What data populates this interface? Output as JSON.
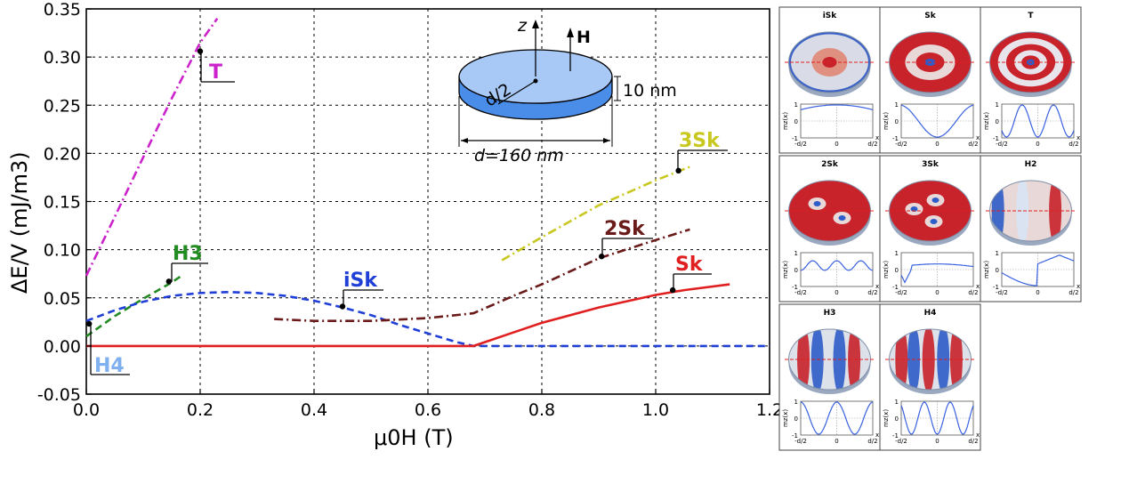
{
  "chart_data": {
    "type": "line",
    "xlabel": "μ0H (T)",
    "ylabel": "ΔE/V (mJ/m3)",
    "xlim": [
      0.0,
      1.2
    ],
    "ylim": [
      -0.05,
      0.35
    ],
    "x_ticks": [
      "0.0",
      "0.2",
      "0.4",
      "0.6",
      "0.8",
      "1.0",
      "1.2"
    ],
    "y_ticks": [
      "-0.05",
      "0.00",
      "0.05",
      "0.10",
      "0.15",
      "0.20",
      "0.25",
      "0.30",
      "0.35"
    ],
    "grid": true,
    "series": [
      {
        "name": "T",
        "color": "#cc22cc",
        "dash": "dashdot",
        "x": [
          0.0,
          0.05,
          0.1,
          0.15,
          0.2,
          0.23
        ],
        "y": [
          0.073,
          0.134,
          0.196,
          0.257,
          0.315,
          0.34
        ]
      },
      {
        "name": "H3",
        "color": "#228b22",
        "dash": "dashed",
        "x": [
          0.0,
          0.05,
          0.1,
          0.15,
          0.17
        ],
        "y": [
          0.01,
          0.031,
          0.049,
          0.066,
          0.074
        ]
      },
      {
        "name": "iSk",
        "color": "#1f3fd6",
        "dash": "dashed",
        "x": [
          0.0,
          0.05,
          0.1,
          0.15,
          0.2,
          0.25,
          0.3,
          0.35,
          0.4,
          0.45,
          0.5,
          0.55,
          0.6,
          0.65,
          0.68,
          0.75,
          0.85,
          0.95,
          1.05,
          1.15,
          1.2
        ],
        "y": [
          0.026,
          0.037,
          0.046,
          0.052,
          0.055,
          0.056,
          0.055,
          0.052,
          0.047,
          0.04,
          0.032,
          0.022,
          0.013,
          0.004,
          0.0,
          0.0,
          0.0,
          0.0,
          0.0,
          0.0,
          0.0
        ]
      },
      {
        "name": "Sk",
        "color": "#e02020",
        "dash": "solid",
        "x": [
          0.0,
          0.2,
          0.4,
          0.6,
          0.68,
          0.75,
          0.8,
          0.9,
          1.0,
          1.05,
          1.13
        ],
        "y": [
          0.0,
          0.0,
          0.0,
          0.0,
          0.0,
          0.014,
          0.024,
          0.04,
          0.053,
          0.058,
          0.064
        ]
      },
      {
        "name": "2Sk",
        "color": "#6b1a1a",
        "dash": "dashdot",
        "x": [
          0.33,
          0.4,
          0.5,
          0.6,
          0.68,
          0.75,
          0.8,
          0.9,
          1.0,
          1.06
        ],
        "y": [
          0.028,
          0.026,
          0.026,
          0.029,
          0.034,
          0.052,
          0.064,
          0.091,
          0.11,
          0.121
        ]
      },
      {
        "name": "3Sk",
        "color": "#c8c820",
        "dash": "dashdot",
        "x": [
          0.73,
          0.8,
          0.9,
          1.0,
          1.06
        ],
        "y": [
          0.089,
          0.113,
          0.146,
          0.172,
          0.186
        ]
      },
      {
        "name": "H4",
        "color": "#7fb0f0",
        "dash": "solid",
        "x": [
          0.005
        ],
        "y": [
          0.023
        ]
      }
    ],
    "markers": [
      {
        "series": "T",
        "x": 0.2,
        "y": 0.306
      },
      {
        "series": "H3",
        "x": 0.145,
        "y": 0.067
      },
      {
        "series": "iSk",
        "x": 0.45,
        "y": 0.041
      },
      {
        "series": "2Sk",
        "x": 0.905,
        "y": 0.093
      },
      {
        "series": "3Sk",
        "x": 1.04,
        "y": 0.182
      },
      {
        "series": "Sk",
        "x": 1.03,
        "y": 0.058
      },
      {
        "series": "H4",
        "x": 0.005,
        "y": 0.023
      }
    ]
  },
  "series_labels": {
    "T": "T",
    "H3": "H3",
    "iSk": "iSk",
    "Sk": "Sk",
    "2Sk": "2Sk",
    "3Sk": "3Sk",
    "H4": "H4"
  },
  "axes": {
    "xlabel": "μ0H (T)",
    "ylabel": "ΔE/V (mJ/m3)"
  },
  "inset": {
    "z_label": "z",
    "h_label": "H",
    "d2_label": "d/2",
    "thickness_label": "10 nm",
    "diameter_label": "d=160 nm"
  },
  "panels": [
    {
      "title": "iSk",
      "kind": "isk"
    },
    {
      "title": "Sk",
      "kind": "sk"
    },
    {
      "title": "T",
      "kind": "t"
    },
    {
      "title": "2Sk",
      "kind": "2sk"
    },
    {
      "title": "3Sk",
      "kind": "3sk"
    },
    {
      "title": "H2",
      "kind": "h2"
    },
    {
      "title": "H3",
      "kind": "h3"
    },
    {
      "title": "H4",
      "kind": "h4"
    }
  ],
  "panel_axes": {
    "y_top": "1",
    "y_mid": "0",
    "y_bot": "-1",
    "x_left": "-d/2",
    "x_mid": "0",
    "x_right": "d/2",
    "x_var": "x",
    "y_var": "mz(x)"
  }
}
